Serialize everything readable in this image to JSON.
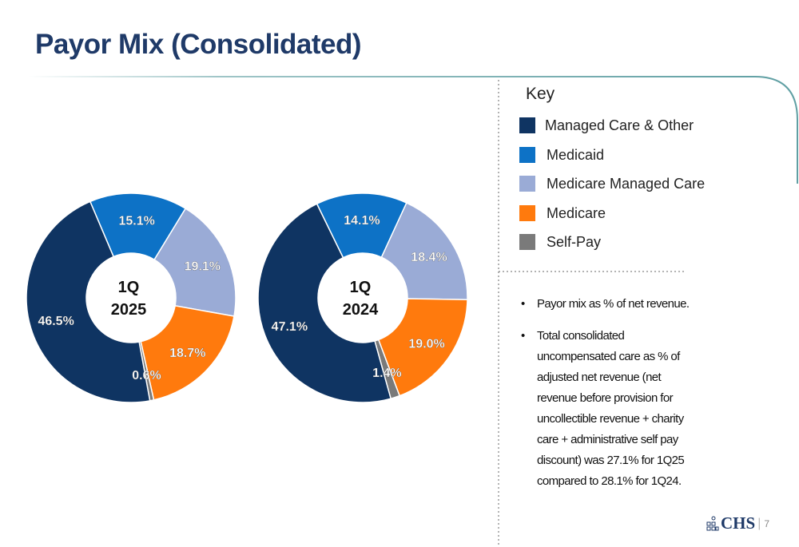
{
  "title": "Payor Mix (Consolidated)",
  "key": {
    "heading": "Key",
    "items": [
      {
        "label": "Managed Care & Other",
        "color": "#0f3462"
      },
      {
        "label": "Medicaid",
        "color": "#0d72c6"
      },
      {
        "label": "Medicare Managed Care",
        "color": "#9aabd6"
      },
      {
        "label": "Medicare",
        "color": "#ff7a0d"
      },
      {
        "label": "Self-Pay",
        "color": "#7a7a7a"
      }
    ]
  },
  "bullets": [
    "Payor mix as % of net revenue.",
    "Total consolidated uncompensated care as %  of adjusted net revenue (net revenue before provision for uncollectible revenue + charity care + administrative self pay discount) was 27.1% for 1Q25 compared to 28.1% for 1Q24."
  ],
  "footer": {
    "logo_text": "CHS",
    "page_number": "7"
  },
  "chart_data": [
    {
      "type": "pie",
      "center_label": [
        "1Q",
        "2025"
      ],
      "categories": [
        "Medicaid",
        "Medicare Managed Care",
        "Medicare",
        "Self-Pay",
        "Managed Care & Other"
      ],
      "values": [
        15.1,
        19.1,
        18.7,
        0.6,
        46.5
      ],
      "labels": [
        "15.1%",
        "19.1%",
        "18.7%",
        "0.6%",
        "46.5%"
      ],
      "colors": [
        "#0d72c6",
        "#9aabd6",
        "#ff7a0d",
        "#7a7a7a",
        "#0f3462"
      ]
    },
    {
      "type": "pie",
      "center_label": [
        "1Q",
        "2024"
      ],
      "categories": [
        "Medicaid",
        "Medicare Managed Care",
        "Medicare",
        "Self-Pay",
        "Managed Care & Other"
      ],
      "values": [
        14.1,
        18.4,
        19.0,
        1.4,
        47.1
      ],
      "labels": [
        "14.1%",
        "18.4%",
        "19.0%",
        "1.4%",
        "47.1%"
      ],
      "colors": [
        "#0d72c6",
        "#9aabd6",
        "#ff7a0d",
        "#7a7a7a",
        "#0f3462"
      ]
    }
  ]
}
